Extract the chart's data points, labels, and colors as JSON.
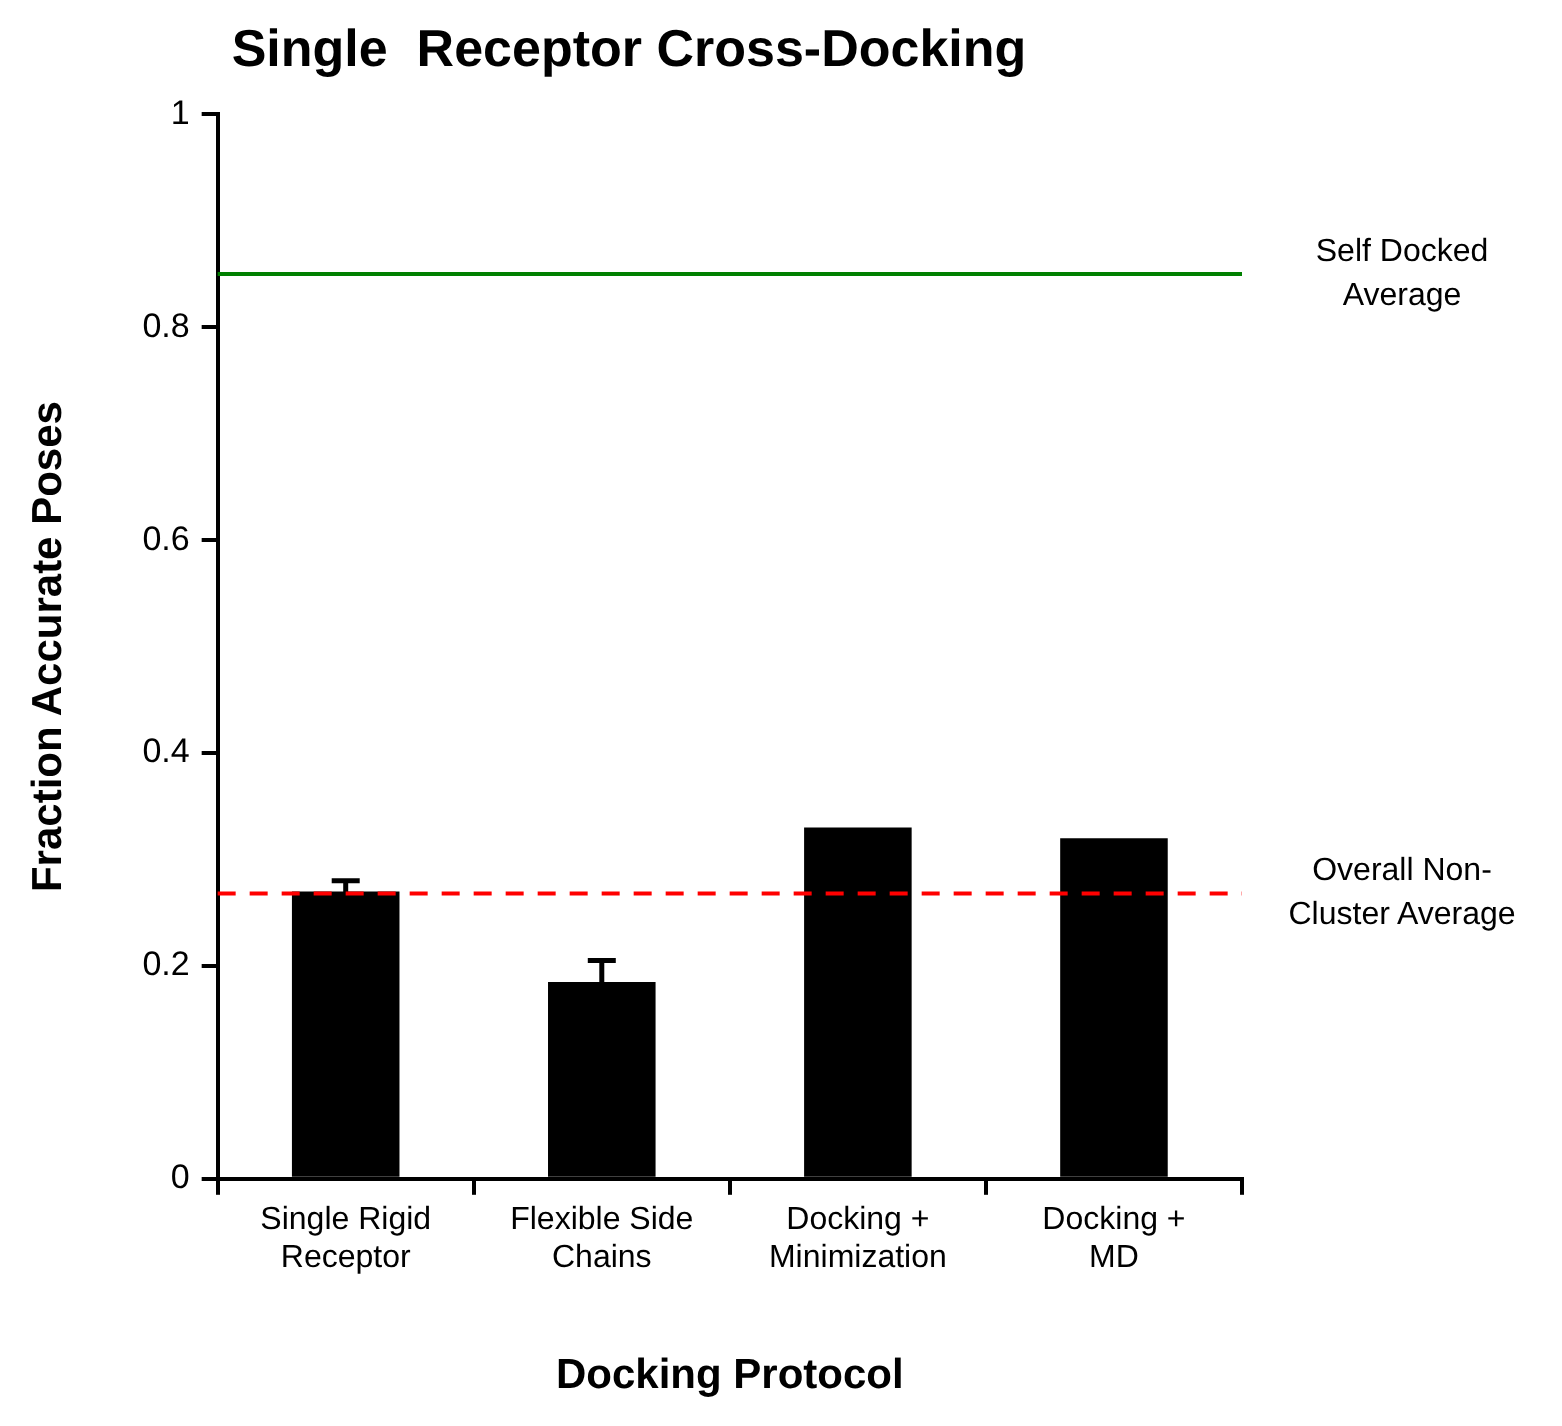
{
  "chart_data": {
    "type": "bar",
    "title": "Single  Receptor Cross-Docking",
    "xlabel": "Docking Protocol",
    "ylabel": "Fraction Accurate Poses",
    "categories": [
      "Single Rigid Receptor",
      "Flexible Side Chains",
      "Docking + Minimization",
      "Docking + MD"
    ],
    "values": [
      0.27,
      0.185,
      0.33,
      0.32
    ],
    "errors": [
      0.01,
      0.02,
      null,
      null
    ],
    "color": "#000000",
    "ylim": [
      0,
      1
    ],
    "yticks": [
      0,
      0.2,
      0.4,
      0.6,
      0.8,
      1
    ],
    "grid": false,
    "legend": false,
    "ref_lines": [
      {
        "axis": "y",
        "value": 0.85,
        "label": "Self Docked Average",
        "color": "#008000",
        "line_style": "solid"
      },
      {
        "axis": "y",
        "value": 0.268,
        "label": "Overall Non-Cluster Average",
        "color": "#ff0000",
        "line_style": "dashed"
      }
    ]
  }
}
